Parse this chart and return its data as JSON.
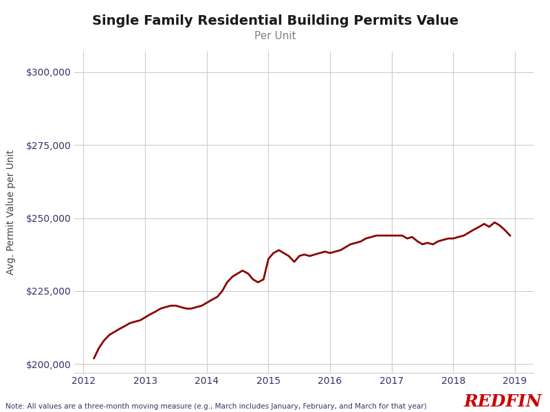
{
  "title": "Single Family Residential Building Permits Value",
  "subtitle": "Per Unit",
  "ylabel": "Avg. Permit Value per Unit",
  "note": "Note: All values are a three-month moving measure (e.g., March includes January, February, and March for that year)",
  "redfin_text": "REDFIN",
  "line_color": "#8B0000",
  "background_color": "#FFFFFF",
  "grid_color": "#CCCCCC",
  "title_color": "#1a1a1a",
  "subtitle_color": "#808080",
  "ylabel_color": "#444444",
  "tick_color": "#333366",
  "note_color": "#333366",
  "redfin_color": "#CC0000",
  "ylim": [
    197000,
    307000
  ],
  "yticks": [
    200000,
    225000,
    250000,
    275000,
    300000
  ],
  "xlim_min": 2011.85,
  "xlim_max": 2019.3,
  "xtick_years": [
    2012,
    2013,
    2014,
    2015,
    2016,
    2017,
    2018,
    2019
  ],
  "x": [
    2012.17,
    2012.25,
    2012.33,
    2012.42,
    2012.5,
    2012.58,
    2012.67,
    2012.75,
    2012.83,
    2012.92,
    2013.0,
    2013.08,
    2013.17,
    2013.25,
    2013.33,
    2013.42,
    2013.5,
    2013.58,
    2013.67,
    2013.75,
    2013.83,
    2013.92,
    2014.0,
    2014.08,
    2014.17,
    2014.25,
    2014.33,
    2014.42,
    2014.5,
    2014.58,
    2014.67,
    2014.75,
    2014.83,
    2014.92,
    2015.0,
    2015.08,
    2015.17,
    2015.25,
    2015.33,
    2015.42,
    2015.5,
    2015.58,
    2015.67,
    2015.75,
    2015.83,
    2015.92,
    2016.0,
    2016.08,
    2016.17,
    2016.25,
    2016.33,
    2016.42,
    2016.5,
    2016.58,
    2016.67,
    2016.75,
    2016.83,
    2016.92,
    2017.0,
    2017.08,
    2017.17,
    2017.25,
    2017.33,
    2017.42,
    2017.5,
    2017.58,
    2017.67,
    2017.75,
    2017.83,
    2017.92,
    2018.0,
    2018.08,
    2018.17,
    2018.25,
    2018.33,
    2018.42,
    2018.5,
    2018.58,
    2018.67,
    2018.75,
    2018.83,
    2018.92
  ],
  "y": [
    202000,
    205500,
    208000,
    210000,
    211000,
    212000,
    213000,
    214000,
    214500,
    215000,
    216000,
    217000,
    218000,
    219000,
    219500,
    220000,
    220000,
    219500,
    219000,
    219000,
    219500,
    220000,
    221000,
    222000,
    223000,
    225000,
    228000,
    230000,
    231000,
    232000,
    231000,
    229000,
    228000,
    229000,
    236000,
    238000,
    239000,
    238000,
    237000,
    235000,
    237000,
    237500,
    237000,
    237500,
    238000,
    238500,
    238000,
    238500,
    239000,
    240000,
    241000,
    241500,
    242000,
    243000,
    243500,
    244000,
    244000,
    244000,
    244000,
    244000,
    244000,
    243000,
    243500,
    242000,
    241000,
    241500,
    241000,
    242000,
    242500,
    243000,
    243000,
    243500,
    244000,
    245000,
    246000,
    247000,
    248000,
    247000,
    248500,
    247500,
    246000,
    244000
  ]
}
